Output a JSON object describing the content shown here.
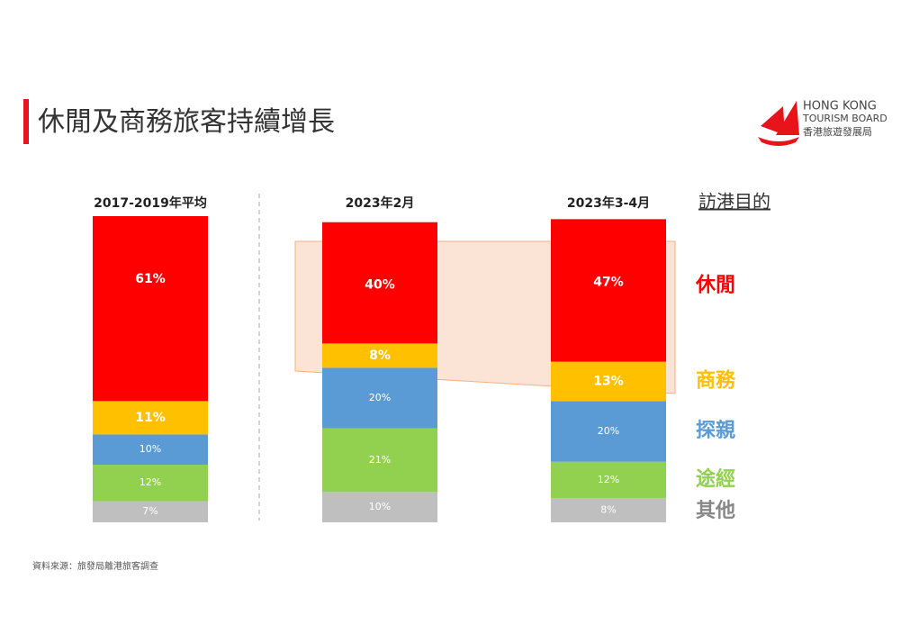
{
  "chart_data": {
    "type": "bar",
    "stacked": true,
    "title": "休閒及商務旅客持續增長",
    "categories": [
      "2017-2019年平均",
      "2023年2月",
      "2023年3-4月"
    ],
    "legend_title": "訪港目的",
    "series": [
      {
        "name": "休閒",
        "color": "#ff0000",
        "values": [
          61,
          40,
          47
        ],
        "value_labels": [
          "61%",
          "40%",
          "47%"
        ]
      },
      {
        "name": "商務",
        "color": "#ffc000",
        "values": [
          11,
          8,
          13
        ],
        "value_labels": [
          "11%",
          "8%",
          "13%"
        ]
      },
      {
        "name": "探親",
        "color": "#5b9bd5",
        "values": [
          10,
          20,
          20
        ],
        "value_labels": [
          "10%",
          "20%",
          "20%"
        ]
      },
      {
        "name": "途經",
        "color": "#92d050",
        "values": [
          12,
          21,
          12
        ],
        "value_labels": [
          "12%",
          "21%",
          "12%"
        ]
      },
      {
        "name": "其他",
        "color": "#bfbfbf",
        "values": [
          7,
          10,
          8
        ],
        "value_labels": [
          "7%",
          "10%",
          "8%"
        ]
      }
    ],
    "source": "資料來源：旅發局離港旅客調查"
  },
  "logo": {
    "line1": "HONG KONG",
    "line2": "TOURISM BOARD",
    "line3": "香港旅遊發展局"
  }
}
